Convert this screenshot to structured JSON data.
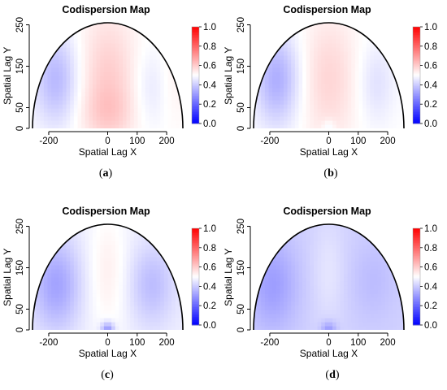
{
  "chart_data": [
    {
      "type": "heatmap",
      "panel": "a",
      "caption": "(a)",
      "title": "Codispersion Map",
      "xlabel": "Spatial Lag X",
      "ylabel": "Spatial Lag Y",
      "x_ticks": [
        "-200",
        "0",
        "100",
        "200"
      ],
      "y_ticks": [
        "0",
        "50",
        "150",
        "250"
      ],
      "xlim": [
        -255,
        255
      ],
      "ylim": [
        0,
        255
      ],
      "colorbar": {
        "ticks": [
          "0.0",
          "0.2",
          "0.4",
          "0.6",
          "0.8",
          "1.0"
        ],
        "range": [
          0,
          1
        ],
        "low_color": "#0000ff",
        "mid_color": "#ffffff",
        "high_color": "#ff0000"
      },
      "field": {
        "base": 0.5,
        "bumps": [
          {
            "x": -175,
            "y": 120,
            "sx": 55,
            "sy": 80,
            "a": -0.14
          },
          {
            "x": 0,
            "y": 110,
            "sx": 70,
            "sy": 120,
            "a": 0.1
          },
          {
            "x": 0,
            "y": 40,
            "sx": 60,
            "sy": 40,
            "a": 0.04
          },
          {
            "x": 150,
            "y": 100,
            "sx": 45,
            "sy": 70,
            "a": -0.05
          },
          {
            "x": 220,
            "y": 120,
            "sx": 40,
            "sy": 80,
            "a": 0.03
          }
        ]
      }
    },
    {
      "type": "heatmap",
      "panel": "b",
      "caption": "(b)",
      "title": "Codispersion Map",
      "xlabel": "Spatial Lag X",
      "ylabel": "Spatial Lag Y",
      "x_ticks": [
        "-200",
        "0",
        "100",
        "200"
      ],
      "y_ticks": [
        "0",
        "50",
        "150",
        "250"
      ],
      "xlim": [
        -255,
        255
      ],
      "ylim": [
        0,
        255
      ],
      "colorbar": {
        "ticks": [
          "0.0",
          "0.2",
          "0.4",
          "0.6",
          "0.8",
          "1.0"
        ],
        "range": [
          0,
          1
        ],
        "low_color": "#0000ff",
        "mid_color": "#ffffff",
        "high_color": "#ff0000"
      },
      "field": {
        "base": 0.5,
        "bumps": [
          {
            "x": -175,
            "y": 120,
            "sx": 55,
            "sy": 80,
            "a": -0.16
          },
          {
            "x": 0,
            "y": 120,
            "sx": 70,
            "sy": 110,
            "a": 0.08
          },
          {
            "x": 0,
            "y": 0,
            "sx": 15,
            "sy": 15,
            "a": -0.06
          },
          {
            "x": 160,
            "y": 110,
            "sx": 45,
            "sy": 70,
            "a": -0.06
          }
        ]
      }
    },
    {
      "type": "heatmap",
      "panel": "c",
      "caption": "(c)",
      "title": "Codispersion Map",
      "xlabel": "Spatial Lag X",
      "ylabel": "Spatial Lag Y",
      "x_ticks": [
        "-200",
        "0",
        "100",
        "200"
      ],
      "y_ticks": [
        "0",
        "50",
        "150",
        "250"
      ],
      "xlim": [
        -255,
        255
      ],
      "ylim": [
        0,
        255
      ],
      "colorbar": {
        "ticks": [
          "0.0",
          "0.2",
          "0.4",
          "0.6",
          "0.8",
          "1.0"
        ],
        "range": [
          0,
          1
        ],
        "low_color": "#0000ff",
        "mid_color": "#ffffff",
        "high_color": "#ff0000"
      },
      "field": {
        "base": 0.47,
        "bumps": [
          {
            "x": -175,
            "y": 110,
            "sx": 60,
            "sy": 80,
            "a": -0.15
          },
          {
            "x": 0,
            "y": 140,
            "sx": 50,
            "sy": 110,
            "a": 0.06
          },
          {
            "x": 0,
            "y": 0,
            "sx": 16,
            "sy": 14,
            "a": -0.2
          },
          {
            "x": 150,
            "y": 110,
            "sx": 55,
            "sy": 70,
            "a": -0.1
          }
        ]
      }
    },
    {
      "type": "heatmap",
      "panel": "d",
      "caption": "(d)",
      "title": "Codispersion Map",
      "xlabel": "Spatial Lag X",
      "ylabel": "Spatial Lag Y",
      "x_ticks": [
        "-200",
        "0",
        "100",
        "200"
      ],
      "y_ticks": [
        "0",
        "50",
        "150",
        "250"
      ],
      "xlim": [
        -255,
        255
      ],
      "ylim": [
        0,
        255
      ],
      "colorbar": {
        "ticks": [
          "0.0",
          "0.2",
          "0.4",
          "0.6",
          "0.8",
          "1.0"
        ],
        "range": [
          0,
          1
        ],
        "low_color": "#0000ff",
        "mid_color": "#ffffff",
        "high_color": "#ff0000"
      },
      "field": {
        "base": 0.41,
        "bumps": [
          {
            "x": -190,
            "y": 110,
            "sx": 60,
            "sy": 80,
            "a": -0.1
          },
          {
            "x": 0,
            "y": 140,
            "sx": 40,
            "sy": 90,
            "a": 0.04
          },
          {
            "x": 0,
            "y": 0,
            "sx": 18,
            "sy": 15,
            "a": -0.12
          },
          {
            "x": 150,
            "y": 120,
            "sx": 55,
            "sy": 70,
            "a": -0.04
          }
        ]
      }
    }
  ]
}
